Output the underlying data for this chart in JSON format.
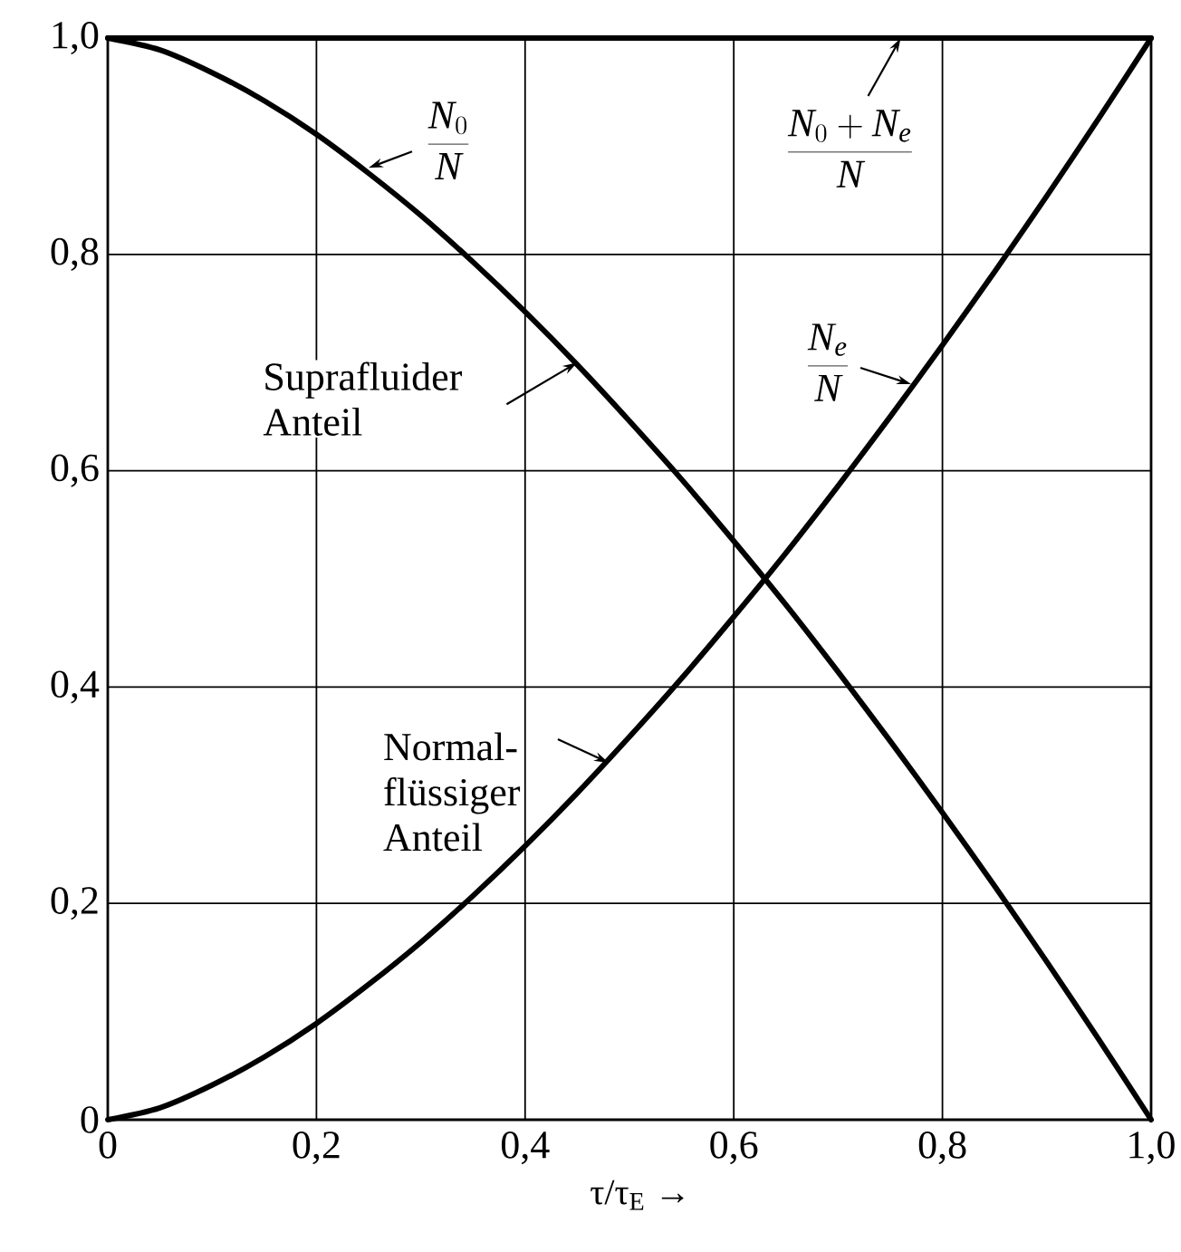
{
  "chart_data": {
    "type": "line",
    "xlabel": "τ/τ$_{E}$ →",
    "x": [
      0,
      0.05,
      0.1,
      0.15,
      0.2,
      0.25,
      0.3,
      0.35,
      0.4,
      0.45,
      0.5,
      0.55,
      0.6,
      0.65,
      0.7,
      0.75,
      0.8,
      0.85,
      0.9,
      0.95,
      1
    ],
    "series": [
      {
        "color": "#000000",
        "values": [
          1,
          0.989,
          0.968,
          0.942,
          0.911,
          0.875,
          0.836,
          0.793,
          0.747,
          0.698,
          0.646,
          0.592,
          0.535,
          0.476,
          0.414,
          0.35,
          0.284,
          0.216,
          0.146,
          0.074,
          0
        ]
      },
      {
        "color": "#000000",
        "values": [
          0,
          0.011,
          0.032,
          0.058,
          0.089,
          0.125,
          0.164,
          0.207,
          0.253,
          0.302,
          0.354,
          0.408,
          0.465,
          0.524,
          0.586,
          0.65,
          0.716,
          0.784,
          0.854,
          0.926,
          1
        ]
      }
    ],
    "ref_lines": [
      {
        "axis": "y",
        "value": 1,
        "color": "#000000",
        "line_style": "solid"
      }
    ],
    "xlim": [
      0,
      1
    ],
    "ylim": [
      0,
      1
    ],
    "xticks": [
      0,
      {
        "value": 0.2,
        "label": "0,2"
      },
      {
        "value": 0.4,
        "label": "0,4"
      },
      {
        "value": 0.6,
        "label": "0,6"
      },
      {
        "value": 0.8,
        "label": "0,8"
      },
      {
        "value": 1,
        "label": "1,0"
      }
    ],
    "yticks": [
      0,
      {
        "value": 0.2,
        "label": "0,2"
      },
      {
        "value": 0.4,
        "label": "0,4"
      },
      {
        "value": 0.6,
        "label": "0,6"
      },
      {
        "value": 0.8,
        "label": "0,8"
      },
      {
        "value": 1,
        "label": "1,0"
      }
    ],
    "grid": true,
    "marker": "none",
    "line_style": "solid",
    "annotations": [
      {
        "text": "\\frac{N_0}{N}",
        "x": 0.25,
        "y": 0.88
      },
      {
        "text": "Suprafluider Anteil",
        "x": 0.45,
        "y": 0.7
      },
      {
        "text": "\\frac{N_0 + N_e}{N}",
        "x": 0.76,
        "y": 1
      },
      {
        "text": "\\frac{N_e}{N}",
        "x": 0.77,
        "y": 0.68
      },
      {
        "text": "Normal-flüssiger Anteil",
        "x": 0.48,
        "y": 0.33
      }
    ]
  }
}
